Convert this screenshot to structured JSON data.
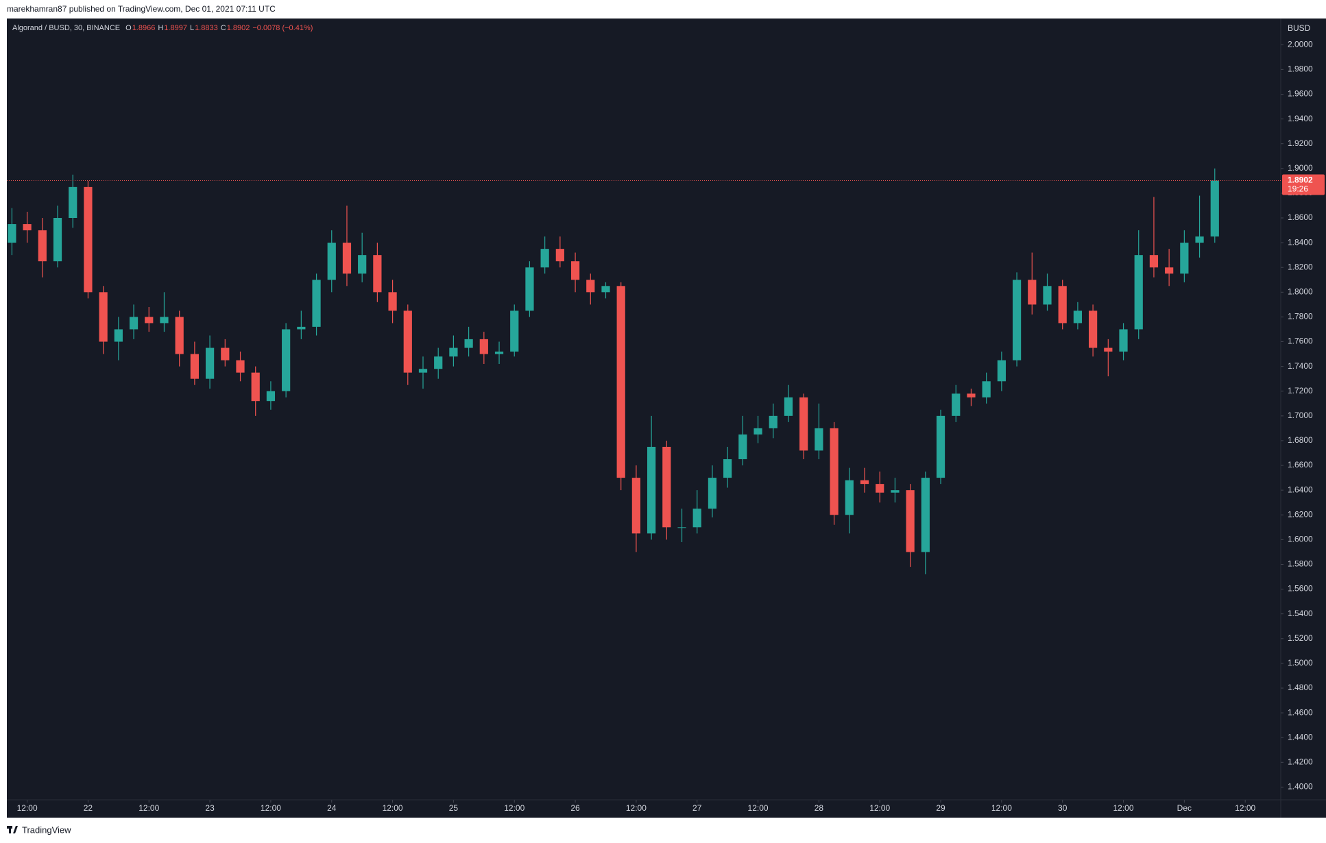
{
  "header": "marekhamran87 published on TradingView.com, Dec 01, 2021 07:11 UTC",
  "footer": "TradingView",
  "chart_data": {
    "type": "candlestick",
    "title": "Algorand / BUSD, 30, BINANCE",
    "ohlc_legend": [
      {
        "label": "O",
        "value": 1.8966
      },
      {
        "label": "H",
        "value": 1.8997
      },
      {
        "label": "L",
        "value": 1.8833
      },
      {
        "label": "C",
        "value": 1.8902
      }
    ],
    "change": "−0.0078 (−0.41%)",
    "currency": "BUSD",
    "countdown": "19:26",
    "up_color": "#26a69a",
    "down_color": "#ef5350",
    "grid": false,
    "x": [
      -3,
      0,
      3,
      6,
      9,
      12,
      15,
      18,
      21,
      24,
      27,
      30,
      33,
      36,
      39,
      42,
      45,
      48,
      51,
      54,
      57,
      60,
      63,
      66,
      69,
      72,
      75,
      78,
      81,
      84,
      87,
      90,
      93,
      96,
      99,
      102,
      105,
      108,
      111,
      114,
      117,
      120,
      123,
      126,
      129,
      132,
      135,
      138,
      141,
      144,
      147,
      150,
      153,
      156,
      159,
      162,
      165,
      168,
      171,
      174,
      177,
      180,
      183,
      186,
      189,
      192,
      195,
      198,
      201,
      204,
      207,
      210,
      213,
      216,
      219,
      222,
      225,
      228,
      231,
      234
    ],
    "open": [
      1.84,
      1.855,
      1.85,
      1.825,
      1.86,
      1.885,
      1.8,
      1.76,
      1.77,
      1.78,
      1.775,
      1.78,
      1.75,
      1.73,
      1.755,
      1.745,
      1.735,
      1.712,
      1.72,
      1.77,
      1.772,
      1.81,
      1.84,
      1.815,
      1.83,
      1.8,
      1.785,
      1.735,
      1.738,
      1.748,
      1.755,
      1.762,
      1.75,
      1.752,
      1.785,
      1.82,
      1.835,
      1.825,
      1.81,
      1.8,
      1.805,
      1.65,
      1.605,
      1.675,
      1.61,
      1.61,
      1.625,
      1.65,
      1.665,
      1.685,
      1.69,
      1.7,
      1.715,
      1.672,
      1.69,
      1.62,
      1.648,
      1.645,
      1.638,
      1.64,
      1.59,
      1.65,
      1.7,
      1.718,
      1.715,
      1.728,
      1.745,
      1.81,
      1.79,
      1.805,
      1.775,
      1.785,
      1.755,
      1.752,
      1.77,
      1.83,
      1.82,
      1.815,
      1.84,
      1.845
    ],
    "high": [
      1.868,
      1.865,
      1.86,
      1.87,
      1.895,
      1.89,
      1.805,
      1.78,
      1.79,
      1.788,
      1.8,
      1.785,
      1.76,
      1.765,
      1.762,
      1.752,
      1.74,
      1.728,
      1.775,
      1.785,
      1.815,
      1.85,
      1.87,
      1.848,
      1.84,
      1.81,
      1.79,
      1.748,
      1.755,
      1.765,
      1.772,
      1.768,
      1.76,
      1.79,
      1.825,
      1.845,
      1.845,
      1.832,
      1.815,
      1.808,
      1.808,
      1.66,
      1.7,
      1.68,
      1.625,
      1.64,
      1.66,
      1.675,
      1.7,
      1.7,
      1.71,
      1.725,
      1.718,
      1.71,
      1.695,
      1.658,
      1.658,
      1.655,
      1.65,
      1.645,
      1.655,
      1.705,
      1.725,
      1.722,
      1.735,
      1.752,
      1.816,
      1.832,
      1.815,
      1.81,
      1.792,
      1.79,
      1.762,
      1.775,
      1.85,
      1.877,
      1.835,
      1.85,
      1.878,
      1.9
    ],
    "low": [
      1.83,
      1.84,
      1.812,
      1.82,
      1.852,
      1.795,
      1.75,
      1.745,
      1.762,
      1.768,
      1.768,
      1.74,
      1.725,
      1.722,
      1.74,
      1.728,
      1.7,
      1.705,
      1.715,
      1.762,
      1.765,
      1.8,
      1.805,
      1.808,
      1.792,
      1.775,
      1.725,
      1.722,
      1.73,
      1.74,
      1.748,
      1.742,
      1.742,
      1.748,
      1.78,
      1.815,
      1.82,
      1.8,
      1.79,
      1.795,
      1.64,
      1.59,
      1.6,
      1.6,
      1.598,
      1.605,
      1.618,
      1.642,
      1.66,
      1.678,
      1.682,
      1.695,
      1.665,
      1.665,
      1.612,
      1.605,
      1.638,
      1.63,
      1.63,
      1.578,
      1.572,
      1.645,
      1.695,
      1.708,
      1.71,
      1.72,
      1.74,
      1.782,
      1.785,
      1.77,
      1.77,
      1.748,
      1.732,
      1.745,
      1.762,
      1.812,
      1.805,
      1.808,
      1.828,
      1.84
    ],
    "close": [
      1.855,
      1.85,
      1.825,
      1.86,
      1.885,
      1.8,
      1.76,
      1.77,
      1.78,
      1.775,
      1.78,
      1.75,
      1.73,
      1.755,
      1.745,
      1.735,
      1.712,
      1.72,
      1.77,
      1.772,
      1.81,
      1.84,
      1.815,
      1.83,
      1.8,
      1.785,
      1.735,
      1.738,
      1.748,
      1.755,
      1.762,
      1.75,
      1.752,
      1.785,
      1.82,
      1.835,
      1.825,
      1.81,
      1.8,
      1.805,
      1.65,
      1.605,
      1.675,
      1.61,
      1.61,
      1.625,
      1.65,
      1.665,
      1.685,
      1.69,
      1.7,
      1.715,
      1.672,
      1.69,
      1.62,
      1.648,
      1.645,
      1.638,
      1.64,
      1.59,
      1.65,
      1.7,
      1.718,
      1.715,
      1.728,
      1.745,
      1.81,
      1.79,
      1.805,
      1.775,
      1.785,
      1.755,
      1.752,
      1.77,
      1.83,
      1.82,
      1.815,
      1.84,
      1.845,
      1.8902
    ],
    "xlim": [
      -4,
      247
    ],
    "ylim": [
      1.3897,
      2.0212
    ],
    "xticks": [
      {
        "value": 0,
        "label": "12:00"
      },
      {
        "value": 12,
        "label": "22"
      },
      {
        "value": 24,
        "label": "12:00"
      },
      {
        "value": 36,
        "label": "23"
      },
      {
        "value": 48,
        "label": "12:00"
      },
      {
        "value": 60,
        "label": "24"
      },
      {
        "value": 72,
        "label": "12:00"
      },
      {
        "value": 84,
        "label": "25"
      },
      {
        "value": 96,
        "label": "12:00"
      },
      {
        "value": 108,
        "label": "26"
      },
      {
        "value": 120,
        "label": "12:00"
      },
      {
        "value": 132,
        "label": "27"
      },
      {
        "value": 144,
        "label": "12:00"
      },
      {
        "value": 156,
        "label": "28"
      },
      {
        "value": 168,
        "label": "12:00"
      },
      {
        "value": 180,
        "label": "29"
      },
      {
        "value": 192,
        "label": "12:00"
      },
      {
        "value": 204,
        "label": "30"
      },
      {
        "value": 216,
        "label": "12:00"
      },
      {
        "value": 228,
        "label": "Dec"
      },
      {
        "value": 240,
        "label": "12:00"
      }
    ],
    "yticks": [
      {
        "value": 1.4,
        "label": "1.4000"
      },
      {
        "value": 1.42,
        "label": "1.4200"
      },
      {
        "value": 1.44,
        "label": "1.4400"
      },
      {
        "value": 1.46,
        "label": "1.4600"
      },
      {
        "value": 1.48,
        "label": "1.4800"
      },
      {
        "value": 1.5,
        "label": "1.5000"
      },
      {
        "value": 1.52,
        "label": "1.5200"
      },
      {
        "value": 1.54,
        "label": "1.5400"
      },
      {
        "value": 1.56,
        "label": "1.5600"
      },
      {
        "value": 1.58,
        "label": "1.5800"
      },
      {
        "value": 1.6,
        "label": "1.6000"
      },
      {
        "value": 1.62,
        "label": "1.6200"
      },
      {
        "value": 1.64,
        "label": "1.6400"
      },
      {
        "value": 1.66,
        "label": "1.6600"
      },
      {
        "value": 1.68,
        "label": "1.6800"
      },
      {
        "value": 1.7,
        "label": "1.7000"
      },
      {
        "value": 1.72,
        "label": "1.7200"
      },
      {
        "value": 1.74,
        "label": "1.7400"
      },
      {
        "value": 1.76,
        "label": "1.7600"
      },
      {
        "value": 1.78,
        "label": "1.7800"
      },
      {
        "value": 1.8,
        "label": "1.8000"
      },
      {
        "value": 1.82,
        "label": "1.8200"
      },
      {
        "value": 1.84,
        "label": "1.8400"
      },
      {
        "value": 1.86,
        "label": "1.8600"
      },
      {
        "value": 1.88,
        "label": "1.8800"
      },
      {
        "value": 1.9,
        "label": "1.9000"
      },
      {
        "value": 1.92,
        "label": "1.9200"
      },
      {
        "value": 1.94,
        "label": "1.9400"
      },
      {
        "value": 1.96,
        "label": "1.9600"
      },
      {
        "value": 1.98,
        "label": "1.9800"
      },
      {
        "value": 2.0,
        "label": "2.0000"
      }
    ]
  }
}
